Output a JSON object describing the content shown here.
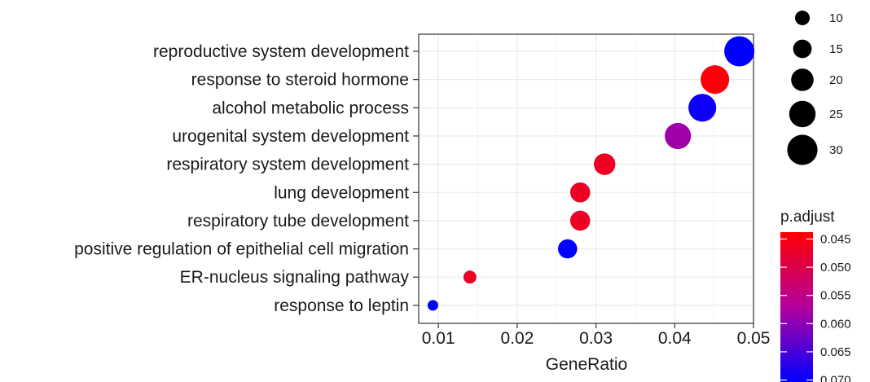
{
  "chart_data": {
    "type": "scatter",
    "xlabel": "GeneRatio",
    "xlim": [
      0.0075,
      0.05
    ],
    "xticks": [
      0.01,
      0.02,
      0.03,
      0.04,
      0.05
    ],
    "xtick_labels": [
      "0.01",
      "0.02",
      "0.03",
      "0.04",
      "0.05"
    ],
    "grid": true,
    "points": [
      {
        "term": "reproductive system development",
        "gene_ratio": 0.0482,
        "count": 31,
        "p_adjust": 0.0705
      },
      {
        "term": "response to steroid hormone",
        "gene_ratio": 0.0451,
        "count": 29,
        "p_adjust": 0.0452
      },
      {
        "term": "alcohol metabolic process",
        "gene_ratio": 0.0435,
        "count": 28,
        "p_adjust": 0.0695
      },
      {
        "term": "urogenital system development",
        "gene_ratio": 0.0404,
        "count": 26,
        "p_adjust": 0.059
      },
      {
        "term": "respiratory system development",
        "gene_ratio": 0.0311,
        "count": 20,
        "p_adjust": 0.0475
      },
      {
        "term": "lung development",
        "gene_ratio": 0.028,
        "count": 18,
        "p_adjust": 0.0475
      },
      {
        "term": "respiratory tube development",
        "gene_ratio": 0.028,
        "count": 18,
        "p_adjust": 0.0475
      },
      {
        "term": "positive regulation of epithelial cell migration",
        "gene_ratio": 0.0264,
        "count": 17,
        "p_adjust": 0.0705
      },
      {
        "term": "ER-nucleus signaling pathway",
        "gene_ratio": 0.014,
        "count": 9,
        "p_adjust": 0.0475
      },
      {
        "term": "response to leptin",
        "gene_ratio": 0.0093,
        "count": 6,
        "p_adjust": 0.0705
      }
    ],
    "size_legend": {
      "values": [
        10,
        15,
        20,
        25,
        30
      ],
      "labels": [
        "10",
        "15",
        "20",
        "25",
        "30"
      ]
    },
    "color_legend": {
      "title": "p.adjust",
      "range": [
        0.0445,
        0.0705
      ],
      "ticks": [
        0.045,
        0.05,
        0.055,
        0.06,
        0.065,
        0.07
      ],
      "tick_labels": [
        "0.045",
        "0.050",
        "0.055",
        "0.060",
        "0.065",
        "0.070"
      ],
      "low_color": "#ff0000",
      "high_color": "#0000ff"
    }
  }
}
